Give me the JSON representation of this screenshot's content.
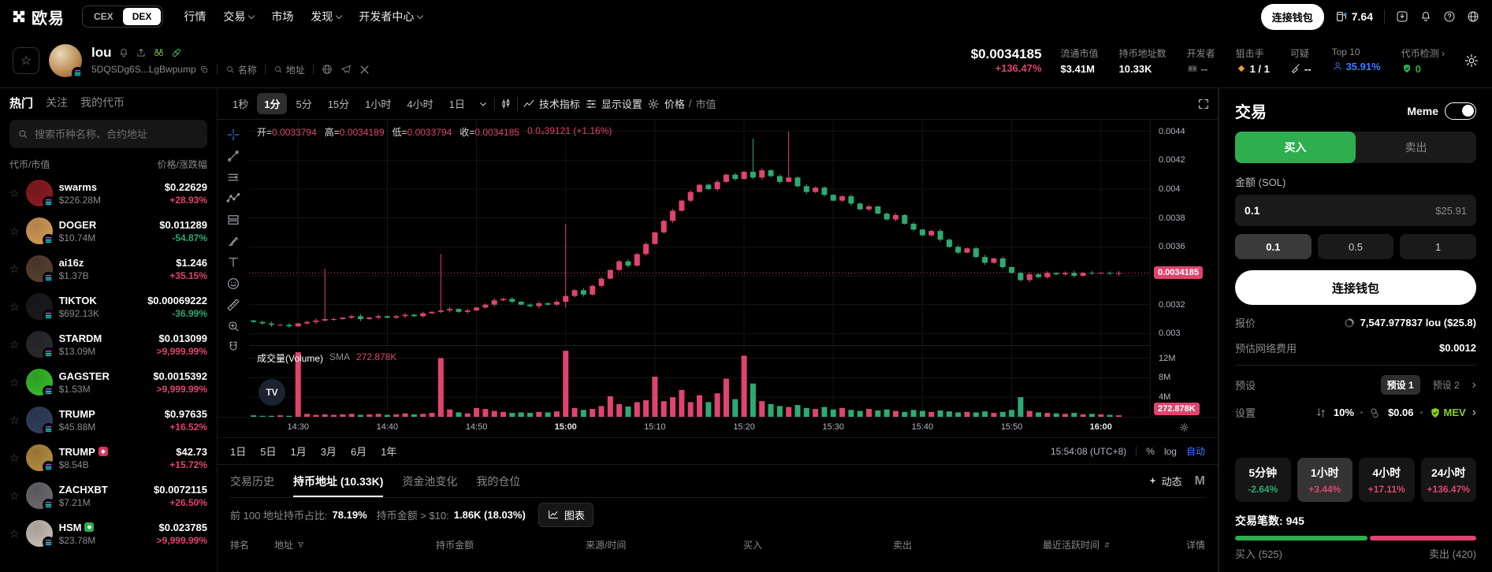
{
  "colors": {
    "up": "#e0446e",
    "down": "#2bab72",
    "buy_green": "#2eae4f",
    "blue": "#3d7eff",
    "mev_green": "#8bd117",
    "orange": "#f0a030"
  },
  "topbar": {
    "logo_text": "欧易",
    "cex_label": "CEX",
    "dex_label": "DEX",
    "nav": [
      {
        "label": "行情",
        "chev": false
      },
      {
        "label": "交易",
        "chev": true
      },
      {
        "label": "市场",
        "chev": false
      },
      {
        "label": "发现",
        "chev": true
      },
      {
        "label": "开发者中心",
        "chev": true
      }
    ],
    "connect_wallet": "连接钱包",
    "gas_value": "7.64"
  },
  "token_header": {
    "name": "lou",
    "address": "5DQSDg6S...LgBwpump",
    "name_filter_label": "名称",
    "address_filter_label": "地址",
    "price": "$0.0034185",
    "change": "+136.47%",
    "stats": [
      {
        "label": "流通市值",
        "value": "$3.41M",
        "icon": "",
        "vclass": ""
      },
      {
        "label": "持币地址数",
        "value": "10.33K",
        "icon": "",
        "vclass": ""
      },
      {
        "label": "开发者",
        "value": "--",
        "icon": "code",
        "vclass": "muted"
      },
      {
        "label": "狙击手",
        "value": "1 / 1",
        "icon": "diamond",
        "vclass": ""
      },
      {
        "label": "可疑",
        "value": "--",
        "icon": "broom",
        "vclass": ""
      },
      {
        "label": "Top 10",
        "value": "35.91%",
        "icon": "person",
        "vclass": "blue"
      },
      {
        "label": "代币检测 ›",
        "value": "0",
        "icon": "shield",
        "vclass": "green"
      }
    ]
  },
  "sidebar": {
    "tabs": [
      "热门",
      "关注",
      "我的代币"
    ],
    "active_tab": 0,
    "search_placeholder": "搜索币种名称、合约地址",
    "col_left": "代币/市值",
    "col_right": "价格/涨跌幅",
    "tokens": [
      {
        "name": "swarms",
        "cap": "$226.28M",
        "price": "$0.22629",
        "change": "+28.93%",
        "dir": "up",
        "color": "#8f1d22",
        "badge": ""
      },
      {
        "name": "DOGER",
        "cap": "$10.74M",
        "price": "$0.011289",
        "change": "-54.87%",
        "dir": "down",
        "color": "#d9a05a",
        "badge": ""
      },
      {
        "name": "ai16z",
        "cap": "$1.37B",
        "price": "$1.246",
        "change": "+35.15%",
        "dir": "up",
        "color": "#5a4232",
        "badge": ""
      },
      {
        "name": "TIKTOK",
        "cap": "$692.13K",
        "price": "$0.00069222",
        "change": "-36.99%",
        "dir": "down",
        "color": "#1b1b1f",
        "badge": ""
      },
      {
        "name": "STARDM",
        "cap": "$13.09M",
        "price": "$0.013099",
        "change": ">9,999.99%",
        "dir": "up",
        "color": "#2c2c30",
        "badge": ""
      },
      {
        "name": "GAGSTER",
        "cap": "$1.53M",
        "price": "$0.0015392",
        "change": ">9,999.99%",
        "dir": "up",
        "color": "#39c12c",
        "badge": ""
      },
      {
        "name": "TRUMP",
        "cap": "$45.88M",
        "price": "$0.97635",
        "change": "+16.52%",
        "dir": "up",
        "color": "#33415f",
        "badge": ""
      },
      {
        "name": "TRUMP",
        "cap": "$8.54B",
        "price": "$42.73",
        "change": "+15.72%",
        "dir": "up",
        "color": "#b99142",
        "badge": "red"
      },
      {
        "name": "ZACHXBT",
        "cap": "$7.21M",
        "price": "$0.0072115",
        "change": "+26.50%",
        "dir": "up",
        "color": "#6e6e72",
        "badge": ""
      },
      {
        "name": "HSM",
        "cap": "$23.78M",
        "price": "$0.023785",
        "change": ">9,999.99%",
        "dir": "up",
        "color": "#cfc4bb",
        "badge": "green"
      }
    ]
  },
  "chart_ui": {
    "intervals": [
      "1秒",
      "1分",
      "5分",
      "15分",
      "1小时",
      "4小时",
      "1日"
    ],
    "active_interval": 1,
    "indicators_label": "技术指标",
    "display_label": "显示设置",
    "price_label": "价格",
    "mcap_label": "市值",
    "ohlc": {
      "o_label": "开",
      "o": "0.0033794",
      "h_label": "高",
      "h": "0.0034189",
      "l_label": "低",
      "l": "0.0033794",
      "c_label": "收",
      "c": "0.0034185",
      "change": "0.0₄39121 (+1.16%)"
    },
    "volume_label": "成交量(Volume)",
    "sma_label": "SMA",
    "sma_value": "272.878K",
    "tv_logo": "TV",
    "ranges": [
      "1日",
      "5日",
      "1月",
      "3月",
      "6月",
      "1年"
    ],
    "clock": "15:54:08 (UTC+8)",
    "percent_label": "%",
    "log_label": "log",
    "auto_label": "自动"
  },
  "chart_data": {
    "type": "candlestick+volume",
    "title": "lou 1分 K线",
    "x_ticks": [
      "14:30",
      "14:40",
      "14:50",
      "15:00",
      "15:10",
      "15:20",
      "15:30",
      "15:40",
      "15:50",
      "16:00"
    ],
    "x_tick_minutes": [
      5,
      15,
      25,
      35,
      45,
      55,
      65,
      75,
      85,
      95
    ],
    "x_bold_ticks": [
      "15:00",
      "16:00"
    ],
    "price_ticks": [
      0.003,
      0.0032,
      0.0034,
      0.0036,
      0.0038,
      0.004,
      0.0042,
      0.0044
    ],
    "price_tick_labels": [
      "0.003",
      "0.0032",
      "0.0036",
      "0.0038",
      "0.004",
      "0.0042",
      "0.0044"
    ],
    "price_range": [
      0.00292,
      0.00448
    ],
    "current_price": 0.0034185,
    "current_price_label": "0.0034185",
    "volume_ticks_m": [
      4,
      8,
      12
    ],
    "volume_tick_labels": [
      "4M",
      "8M",
      "12M"
    ],
    "volume_max_m": 14.5,
    "current_volume_label": "272.878K",
    "open_first": 0.00309,
    "closes": [
      0.00308,
      0.00307,
      0.00306,
      0.00306,
      0.00305,
      0.00307,
      0.00308,
      0.00309,
      0.0031,
      0.0031,
      0.00311,
      0.00312,
      0.0031,
      0.00311,
      0.00312,
      0.00311,
      0.00312,
      0.00313,
      0.00312,
      0.00314,
      0.00315,
      0.00316,
      0.00317,
      0.00315,
      0.00316,
      0.00318,
      0.0032,
      0.00323,
      0.00324,
      0.00322,
      0.0032,
      0.00319,
      0.00321,
      0.0032,
      0.00322,
      0.00326,
      0.0033,
      0.00327,
      0.00333,
      0.00338,
      0.00344,
      0.0035,
      0.00347,
      0.00355,
      0.00362,
      0.0037,
      0.00378,
      0.00385,
      0.00392,
      0.00398,
      0.00403,
      0.004,
      0.00405,
      0.0041,
      0.00407,
      0.00412,
      0.00408,
      0.00413,
      0.00409,
      0.00405,
      0.00408,
      0.00402,
      0.00398,
      0.00401,
      0.00396,
      0.00392,
      0.00395,
      0.0039,
      0.00386,
      0.00388,
      0.00383,
      0.00379,
      0.00382,
      0.00376,
      0.00372,
      0.00368,
      0.00371,
      0.00365,
      0.0036,
      0.00356,
      0.00359,
      0.00353,
      0.00349,
      0.00352,
      0.00346,
      0.00342,
      0.00337,
      0.00341,
      0.00339,
      0.00342,
      0.00341,
      0.00342,
      0.0034,
      0.00342,
      0.003418,
      0.00342,
      0.003415,
      0.0034185
    ],
    "volumes_m": [
      0.3,
      0.2,
      0.2,
      0.3,
      0.2,
      13.2,
      0.6,
      0.4,
      0.5,
      0.4,
      0.5,
      0.6,
      0.4,
      0.5,
      0.6,
      0.4,
      0.5,
      0.7,
      0.5,
      0.6,
      0.8,
      12.0,
      1.5,
      0.9,
      0.7,
      1.8,
      1.6,
      1.2,
      1.0,
      0.8,
      0.9,
      0.8,
      1.0,
      0.9,
      1.1,
      13.5,
      1.8,
      1.4,
      1.6,
      2.2,
      4.2,
      2.6,
      2.1,
      3.0,
      3.4,
      8.2,
      3.2,
      4.0,
      5.5,
      3.0,
      4.4,
      3.0,
      4.8,
      7.8,
      3.6,
      12.5,
      6.8,
      3.2,
      2.6,
      2.2,
      2.0,
      2.4,
      1.8,
      1.6,
      2.0,
      1.5,
      1.8,
      1.4,
      1.2,
      1.6,
      1.3,
      1.5,
      1.2,
      1.0,
      1.4,
      1.2,
      1.0,
      1.3,
      1.1,
      0.9,
      1.0,
      0.9,
      1.1,
      0.8,
      1.0,
      1.4,
      4.0,
      1.2,
      0.9,
      0.8,
      0.7,
      0.6,
      0.8,
      0.5,
      0.6,
      0.5,
      0.4,
      0.3
    ],
    "wick_overrides": {
      "8": {
        "h": 0.00345
      },
      "21": {
        "h": 0.00355
      },
      "35": {
        "h": 0.00376,
        "l": 0.00318
      },
      "56": {
        "h": 0.00435
      },
      "60": {
        "h": 0.0044
      }
    },
    "up_color": "#e0446e",
    "down_color": "#2bab72",
    "grid": true
  },
  "holders_panel": {
    "tabs": [
      "交易历史",
      "持币地址 (10.33K)",
      "资金池变化",
      "我的仓位"
    ],
    "active_tab": 1,
    "feed_label": "动态",
    "m_logo": "M",
    "stats1_label": "前 100 地址持币占比:",
    "stats1_value": "78.19%",
    "stats2_label": "持币金额 > $10:",
    "stats2_value": "1.86K (18.03%)",
    "chart_btn_label": "图表",
    "columns": [
      "排名",
      "地址",
      "持币金额",
      "来源/时间",
      "买入",
      "卖出",
      "最近活跃时间",
      "详情"
    ]
  },
  "trade_panel": {
    "title": "交易",
    "meme_label": "Meme",
    "buy_label": "买入",
    "sell_label": "卖出",
    "amount_label": "金额 (SOL)",
    "amount_value": "0.1",
    "amount_usd": "$25.91",
    "presets": [
      "0.1",
      "0.5",
      "1"
    ],
    "active_preset": 0,
    "connect_label": "连接钱包",
    "quote_label": "报价",
    "quote_value": "7,547.977837 lou ($25.8)",
    "fee_label": "预估网络费用",
    "fee_value": "$0.0012",
    "preset_label": "预设",
    "preset_tabs": [
      "预设 1",
      "预设 2"
    ],
    "active_preset_tab": 0,
    "settings_label": "设置",
    "slippage_value": "10%",
    "priority_fee_value": "$0.06",
    "mev_label": "MEV",
    "time_stats": [
      {
        "label": "5分钟",
        "value": "-2.64%",
        "dir": "down",
        "active": false
      },
      {
        "label": "1小时",
        "value": "+3.44%",
        "dir": "up",
        "active": true
      },
      {
        "label": "4小时",
        "value": "+17.11%",
        "dir": "up",
        "active": false
      },
      {
        "label": "24小时",
        "value": "+136.47%",
        "dir": "up",
        "active": false
      }
    ],
    "tx_label": "交易笔数:",
    "tx_value": "945",
    "buys_label": "买入 (525)",
    "sells_label": "卖出 (420)",
    "buy_ratio": 0.556
  }
}
